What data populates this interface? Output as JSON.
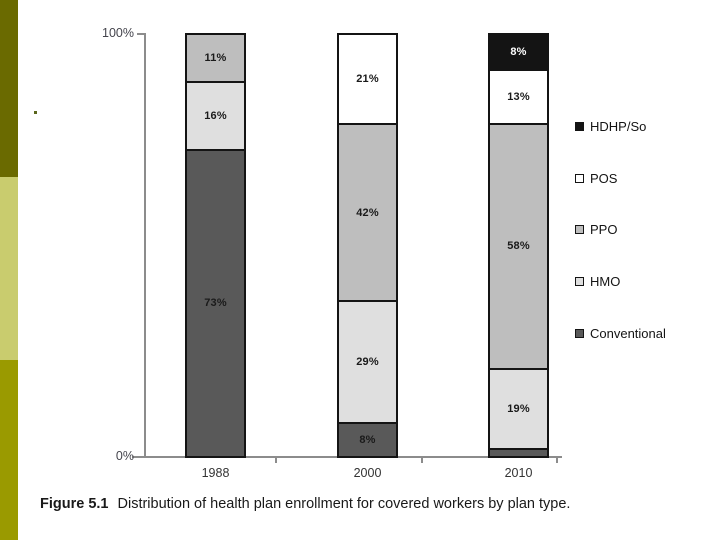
{
  "sidebar": {
    "segments": [
      {
        "name": "top-band",
        "color": "#6a6a00"
      },
      {
        "name": "middle-band",
        "color": "#c9cc6e"
      },
      {
        "name": "bottom-band",
        "color": "#9a9a00"
      }
    ],
    "bullet_color": "#5a661c"
  },
  "chart_data": {
    "type": "bar",
    "stacked": true,
    "title": "",
    "categories": [
      "1988",
      "2000",
      "2010"
    ],
    "series": [
      {
        "name": "Conventional",
        "color": "#595959",
        "label_color": "#1a1a1a",
        "values": [
          73,
          8,
          2
        ],
        "labels": [
          "73%",
          "8%",
          ""
        ]
      },
      {
        "name": "HMO",
        "color": "#dfdfdf",
        "label_color": "#1a1a1a",
        "values": [
          16,
          29,
          19
        ],
        "labels": [
          "16%",
          "29%",
          "19%"
        ]
      },
      {
        "name": "PPO",
        "color": "#bebebe",
        "label_color": "#1a1a1a",
        "values": [
          11,
          42,
          58
        ],
        "labels": [
          "11%",
          "42%",
          "58%"
        ]
      },
      {
        "name": "POS",
        "color": "#ffffff",
        "label_color": "#1a1a1a",
        "values": [
          0,
          21,
          13
        ],
        "labels": [
          "",
          "21%",
          "13%"
        ]
      },
      {
        "name": "HDHP/So",
        "color": "#141414",
        "label_color": "#ffffff",
        "values": [
          0,
          0,
          8
        ],
        "labels": [
          "",
          "",
          "8%"
        ]
      }
    ],
    "stack_order": "series listed bottom-to-top",
    "ylim": [
      0,
      100
    ],
    "grid": false,
    "y_axis_labels": {
      "top": "100%",
      "bottom": "0%"
    },
    "legend": {
      "position": "right",
      "entries": [
        {
          "label": "HDHP/So",
          "color": "#141414"
        },
        {
          "label": "POS",
          "color": "#ffffff"
        },
        {
          "label": "PPO",
          "color": "#bebebe"
        },
        {
          "label": "HMO",
          "color": "#dfdfdf"
        },
        {
          "label": "Conventional",
          "color": "#595959"
        }
      ]
    }
  },
  "caption": {
    "prefix": "Figure 5.1",
    "text": "Distribution of health plan enrollment for covered workers by plan type."
  }
}
